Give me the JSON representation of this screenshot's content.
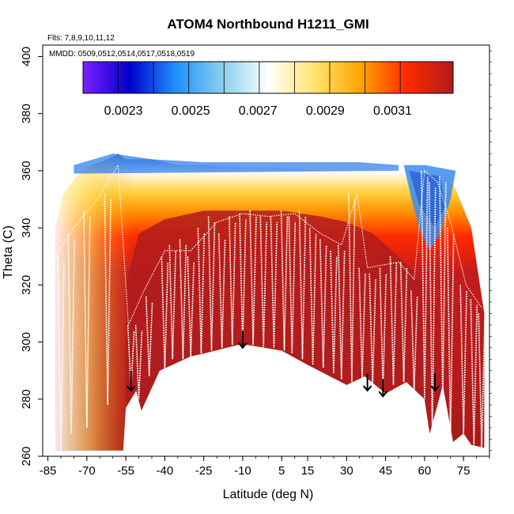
{
  "chart_data": {
    "type": "heatmap",
    "title": "ATOM4 Northbound H1211_GMI",
    "subtitle_flights": "Flts: 7,8,9,10,11,12",
    "subtitle_dates": "MMDD: 0509,0512,0514,0517,0518,0519",
    "xlabel": "Latitude (deg N)",
    "ylabel": "Theta (C)",
    "xlim": [
      -87,
      85
    ],
    "ylim": [
      260,
      404
    ],
    "x_ticks": [
      -85,
      -70,
      -55,
      -40,
      -25,
      -10,
      5,
      15,
      30,
      45,
      60,
      75
    ],
    "x_tick_labels": [
      "-85",
      "-70",
      "-55",
      "-40",
      "-25",
      "-10",
      "5",
      "15",
      "30",
      "45",
      "60",
      "75"
    ],
    "y_ticks": [
      260,
      280,
      300,
      320,
      340,
      360,
      380,
      400
    ],
    "y_tick_labels": [
      "260",
      "280",
      "300",
      "320",
      "340",
      "360",
      "380",
      "400"
    ],
    "colorbar": {
      "min": 0.00218,
      "max": 0.00328,
      "tick_values": [
        0.0023,
        0.0025,
        0.0027,
        0.0029,
        0.0031
      ],
      "tick_labels": [
        "0.0023",
        "0.0025",
        "0.0027",
        "0.0029",
        "0.0031"
      ],
      "colors": [
        "#7f1fff",
        "#0000cc",
        "#1e90ff",
        "#87ceeb",
        "#ffffff",
        "#ffe36e",
        "#ffa500",
        "#ff2a00",
        "#b01a1a"
      ]
    },
    "surface_boundary": [
      {
        "lat": -82,
        "theta": 262
      },
      {
        "lat": -56,
        "theta": 262
      },
      {
        "lat": -55,
        "theta": 277
      },
      {
        "lat": -51,
        "theta": 283
      },
      {
        "lat": -49,
        "theta": 276
      },
      {
        "lat": -44,
        "theta": 286
      },
      {
        "lat": -42,
        "theta": 290
      },
      {
        "lat": -30,
        "theta": 295
      },
      {
        "lat": -25,
        "theta": 296
      },
      {
        "lat": -12,
        "theta": 299
      },
      {
        "lat": -8,
        "theta": 299
      },
      {
        "lat": 5,
        "theta": 297
      },
      {
        "lat": 15,
        "theta": 292
      },
      {
        "lat": 30,
        "theta": 285
      },
      {
        "lat": 37,
        "theta": 288
      },
      {
        "lat": 45,
        "theta": 282
      },
      {
        "lat": 53,
        "theta": 286
      },
      {
        "lat": 60,
        "theta": 280
      },
      {
        "lat": 62,
        "theta": 268
      },
      {
        "lat": 65,
        "theta": 278
      },
      {
        "lat": 67,
        "theta": 285
      },
      {
        "lat": 71,
        "theta": 265
      },
      {
        "lat": 75,
        "theta": 268
      },
      {
        "lat": 78,
        "theta": 264
      },
      {
        "lat": 83,
        "theta": 263
      }
    ],
    "arrows": [
      {
        "lat": -53,
        "theta_top": 290,
        "theta_tip": 283
      },
      {
        "lat": -10,
        "theta_top": 304,
        "theta_tip": 298
      },
      {
        "lat": 38,
        "theta_top": 289,
        "theta_tip": 283
      },
      {
        "lat": 44,
        "theta_top": 287,
        "theta_tip": 281
      },
      {
        "lat": 64,
        "theta_top": 289,
        "theta_tip": 283
      }
    ]
  }
}
